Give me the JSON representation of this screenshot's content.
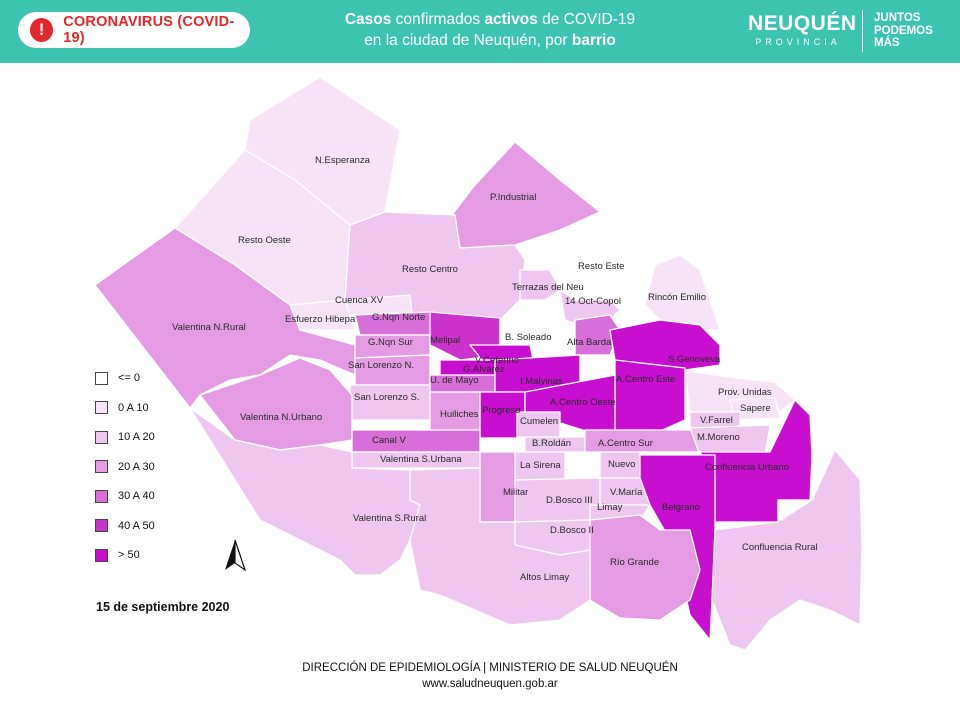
{
  "header": {
    "badge_label": "CORONAVIRUS (COVID-19)",
    "badge_icon": "alert-circle-icon",
    "title_part1_bold": "Casos",
    "title_part2": " confirmados ",
    "title_part3_bold": "activos",
    "title_part4": " de COVID-19",
    "title_line2": "en la ciudad de Neuquén, por ",
    "title_line2_bold": "barrio",
    "brand_name": "NEUQUÉN",
    "brand_sub": "PROVINCIA",
    "slogan": "JUNTOS\nPODEMOS\nMÁS",
    "header_color": "#3cc4b0",
    "badge_color": "#e3262a"
  },
  "legend": {
    "items": [
      {
        "label": "<= 0",
        "color": "#ffffff"
      },
      {
        "label": "0 A 10",
        "color": "#f6e4f6"
      },
      {
        "label": "10 A 20",
        "color": "#efc6ef"
      },
      {
        "label": "20 A 30",
        "color": "#e49be4"
      },
      {
        "label": "30 A 40",
        "color": "#d86fd8"
      },
      {
        "label": "40 A 50",
        "color": "#cc32cc"
      },
      {
        "label": "> 50",
        "color": "#c80fd0"
      }
    ]
  },
  "neighborhoods": [
    {
      "name": "N.Esperanza",
      "class": "0 A 10"
    },
    {
      "name": "Resto Oeste",
      "class": "0 A 10"
    },
    {
      "name": "P.Industrial",
      "class": "20 A 30"
    },
    {
      "name": "Resto Centro",
      "class": "10 A 20"
    },
    {
      "name": "Resto Este",
      "class": "<= 0"
    },
    {
      "name": "Terrazas del Neu",
      "class": "10 A 20"
    },
    {
      "name": "14 Oct-Copol",
      "class": "10 A 20"
    },
    {
      "name": "Rincón Emilio",
      "class": "0 A 10"
    },
    {
      "name": "Valentina N.Rural",
      "class": "20 A 30"
    },
    {
      "name": "Cuenca XV",
      "class": "0 A 10"
    },
    {
      "name": "Esfuerzo Hibepa",
      "class": "0 A 10"
    },
    {
      "name": "G.Nqn Norte",
      "class": "30 A 40"
    },
    {
      "name": "Melipal",
      "class": "40 A 50"
    },
    {
      "name": "B. Soleado",
      "class": "<= 0"
    },
    {
      "name": "Alta Barda",
      "class": "30 A 40"
    },
    {
      "name": "G.Nqn Sur",
      "class": "20 A 30"
    },
    {
      "name": "V.Ceferino",
      "class": "> 50"
    },
    {
      "name": "S.Genoveva",
      "class": "> 50"
    },
    {
      "name": "San Lorenzo N.",
      "class": "20 A 30"
    },
    {
      "name": "G.Alvarez",
      "class": "> 50"
    },
    {
      "name": "U. de Mayo",
      "class": "30 A 40"
    },
    {
      "name": "I.Malvinas",
      "class": "> 50"
    },
    {
      "name": "A.Centro Este",
      "class": "> 50"
    },
    {
      "name": "Prov. Unidas",
      "class": "0 A 10"
    },
    {
      "name": "San Lorenzo S.",
      "class": "10 A 20"
    },
    {
      "name": "Huiliches",
      "class": "20 A 30"
    },
    {
      "name": "Progreso",
      "class": "> 50"
    },
    {
      "name": "A.Centro Oeste",
      "class": "> 50"
    },
    {
      "name": "Sapere",
      "class": "0 A 10"
    },
    {
      "name": "V.Farrel",
      "class": "10 A 20"
    },
    {
      "name": "Valentina N.Urbano",
      "class": "20 A 30"
    },
    {
      "name": "Cumelen",
      "class": "10 A 20"
    },
    {
      "name": "Canal V",
      "class": "30 A 40"
    },
    {
      "name": "B.Roldán",
      "class": "10 A 20"
    },
    {
      "name": "A.Centro Sur",
      "class": "20 A 30"
    },
    {
      "name": "M.Moreno",
      "class": "10 A 20"
    },
    {
      "name": "Valentina S.Urbana",
      "class": "10 A 20"
    },
    {
      "name": "La Sirena",
      "class": "10 A 20"
    },
    {
      "name": "Nuevo",
      "class": "10 A 20"
    },
    {
      "name": "Confluencia Urbano",
      "class": "> 50"
    },
    {
      "name": "Militar",
      "class": "20 A 30"
    },
    {
      "name": "D.Bosco III",
      "class": "10 A 20"
    },
    {
      "name": "V.María",
      "class": "10 A 20"
    },
    {
      "name": "Belgrano",
      "class": "> 50"
    },
    {
      "name": "Limay",
      "class": "10 A 20"
    },
    {
      "name": "Valentina S.Rural",
      "class": "10 A 20"
    },
    {
      "name": "D.Bosco II",
      "class": "10 A 20"
    },
    {
      "name": "Confluencia Rural",
      "class": "10 A 20"
    },
    {
      "name": "Río Grande",
      "class": "20 A 30"
    },
    {
      "name": "Altos Limay",
      "class": "10 A 20"
    }
  ],
  "date": "15 de septiembre 2020",
  "footer": {
    "line1": "DIRECCIÓN DE EPIDEMIOLOGÍA | MINISTERIO DE SALUD NEUQUÉN",
    "line2": "www.saludneuquen.gob.ar"
  },
  "north_arrow_icon": "north-arrow-icon"
}
